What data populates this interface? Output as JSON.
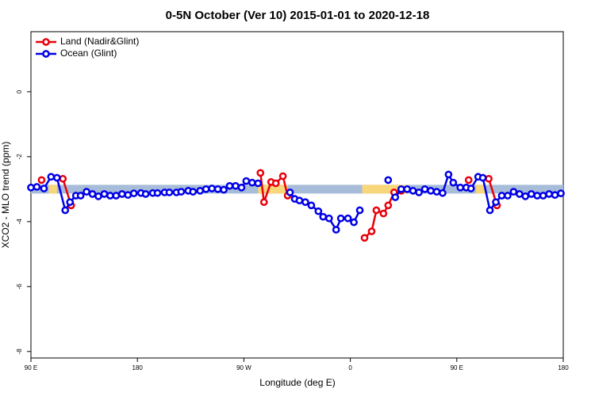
{
  "chart_data": {
    "type": "line",
    "title": "0-5N October (Ver 10)   2015-01-01 to 2020-12-18",
    "x_label": "Longitude (deg E)",
    "y_label": "XCO2 - MLO trend (ppm)",
    "xlim": [
      90,
      540
    ],
    "ylim": [
      -8.2,
      1.85
    ],
    "xticks": [
      {
        "value": 90,
        "label": "90 E"
      },
      180,
      {
        "value": 270,
        "label": "90 W"
      },
      {
        "value": 360,
        "label": "0"
      },
      {
        "value": 450,
        "label": "90 E"
      },
      {
        "value": 540,
        "label": "180"
      }
    ],
    "yticks": [
      -8,
      -6,
      -4,
      -2,
      0
    ],
    "legend": "top-left",
    "band": {
      "y": -3,
      "color": "#a7bcd8",
      "land_color": "#f8d77a",
      "land_ranges": [
        [
          105,
          112
        ],
        [
          282,
          307
        ],
        [
          370,
          407
        ],
        [
          466,
          474
        ]
      ]
    },
    "series": [
      {
        "name": "Land (Nadir&Glint)",
        "color": "#e8000b",
        "x": [
          99,
          null,
          117,
          124,
          null,
          284,
          287,
          293,
          297,
          303,
          307,
          null,
          372,
          378,
          382,
          388,
          392,
          397,
          403,
          null,
          460,
          null,
          477,
          484
        ],
        "values": [
          -2.72,
          null,
          -2.68,
          -3.5,
          null,
          -2.5,
          -3.4,
          -2.78,
          -2.82,
          -2.6,
          -3.2,
          null,
          -4.5,
          -4.3,
          -3.65,
          -3.75,
          -3.5,
          -3.1,
          -3.05,
          null,
          -2.72,
          null,
          -2.68,
          -3.5
        ]
      },
      {
        "name": "Ocean (Glint)",
        "color": "#0000e6",
        "x": [
          90,
          95,
          101,
          107,
          112,
          119,
          123,
          128,
          132,
          137,
          142,
          147,
          152,
          157,
          162,
          167,
          172,
          177,
          183,
          187,
          193,
          197,
          203,
          207,
          213,
          217,
          223,
          227,
          233,
          238,
          243,
          248,
          253,
          258,
          263,
          268,
          272,
          277,
          282,
          null,
          309,
          313,
          317,
          322,
          327,
          333,
          337,
          342,
          348,
          352,
          358,
          363,
          368,
          null,
          392,
          null,
          398,
          403,
          408,
          413,
          418,
          423,
          428,
          433,
          438,
          443,
          447,
          453,
          458,
          462,
          468,
          472,
          478,
          483,
          488,
          493,
          498,
          503,
          508,
          513,
          518,
          523,
          528,
          533,
          538
        ],
        "values": [
          -2.95,
          -2.93,
          -2.98,
          -2.62,
          -2.65,
          -3.65,
          -3.4,
          -3.2,
          -3.2,
          -3.08,
          -3.15,
          -3.22,
          -3.15,
          -3.2,
          -3.2,
          -3.15,
          -3.18,
          -3.13,
          -3.12,
          -3.15,
          -3.12,
          -3.12,
          -3.1,
          -3.1,
          -3.1,
          -3.08,
          -3.05,
          -3.08,
          -3.05,
          -3.0,
          -2.98,
          -3.0,
          -3.02,
          -2.9,
          -2.9,
          -2.95,
          -2.75,
          -2.8,
          -2.82,
          null,
          -3.1,
          -3.3,
          -3.35,
          -3.4,
          -3.5,
          -3.68,
          -3.85,
          -3.9,
          -4.25,
          -3.9,
          -3.9,
          -4.02,
          -3.65,
          null,
          -2.72,
          null,
          -3.25,
          -3.0,
          -3.0,
          -3.05,
          -3.1,
          -3.0,
          -3.05,
          -3.08,
          -3.12,
          -2.55,
          -2.8,
          -2.95,
          -2.95,
          -2.98,
          -2.62,
          -2.65,
          -3.65,
          -3.4,
          -3.2,
          -3.2,
          -3.08,
          -3.15,
          -3.22,
          -3.15,
          -3.2,
          -3.2,
          -3.15,
          -3.18,
          -3.13
        ]
      }
    ]
  }
}
